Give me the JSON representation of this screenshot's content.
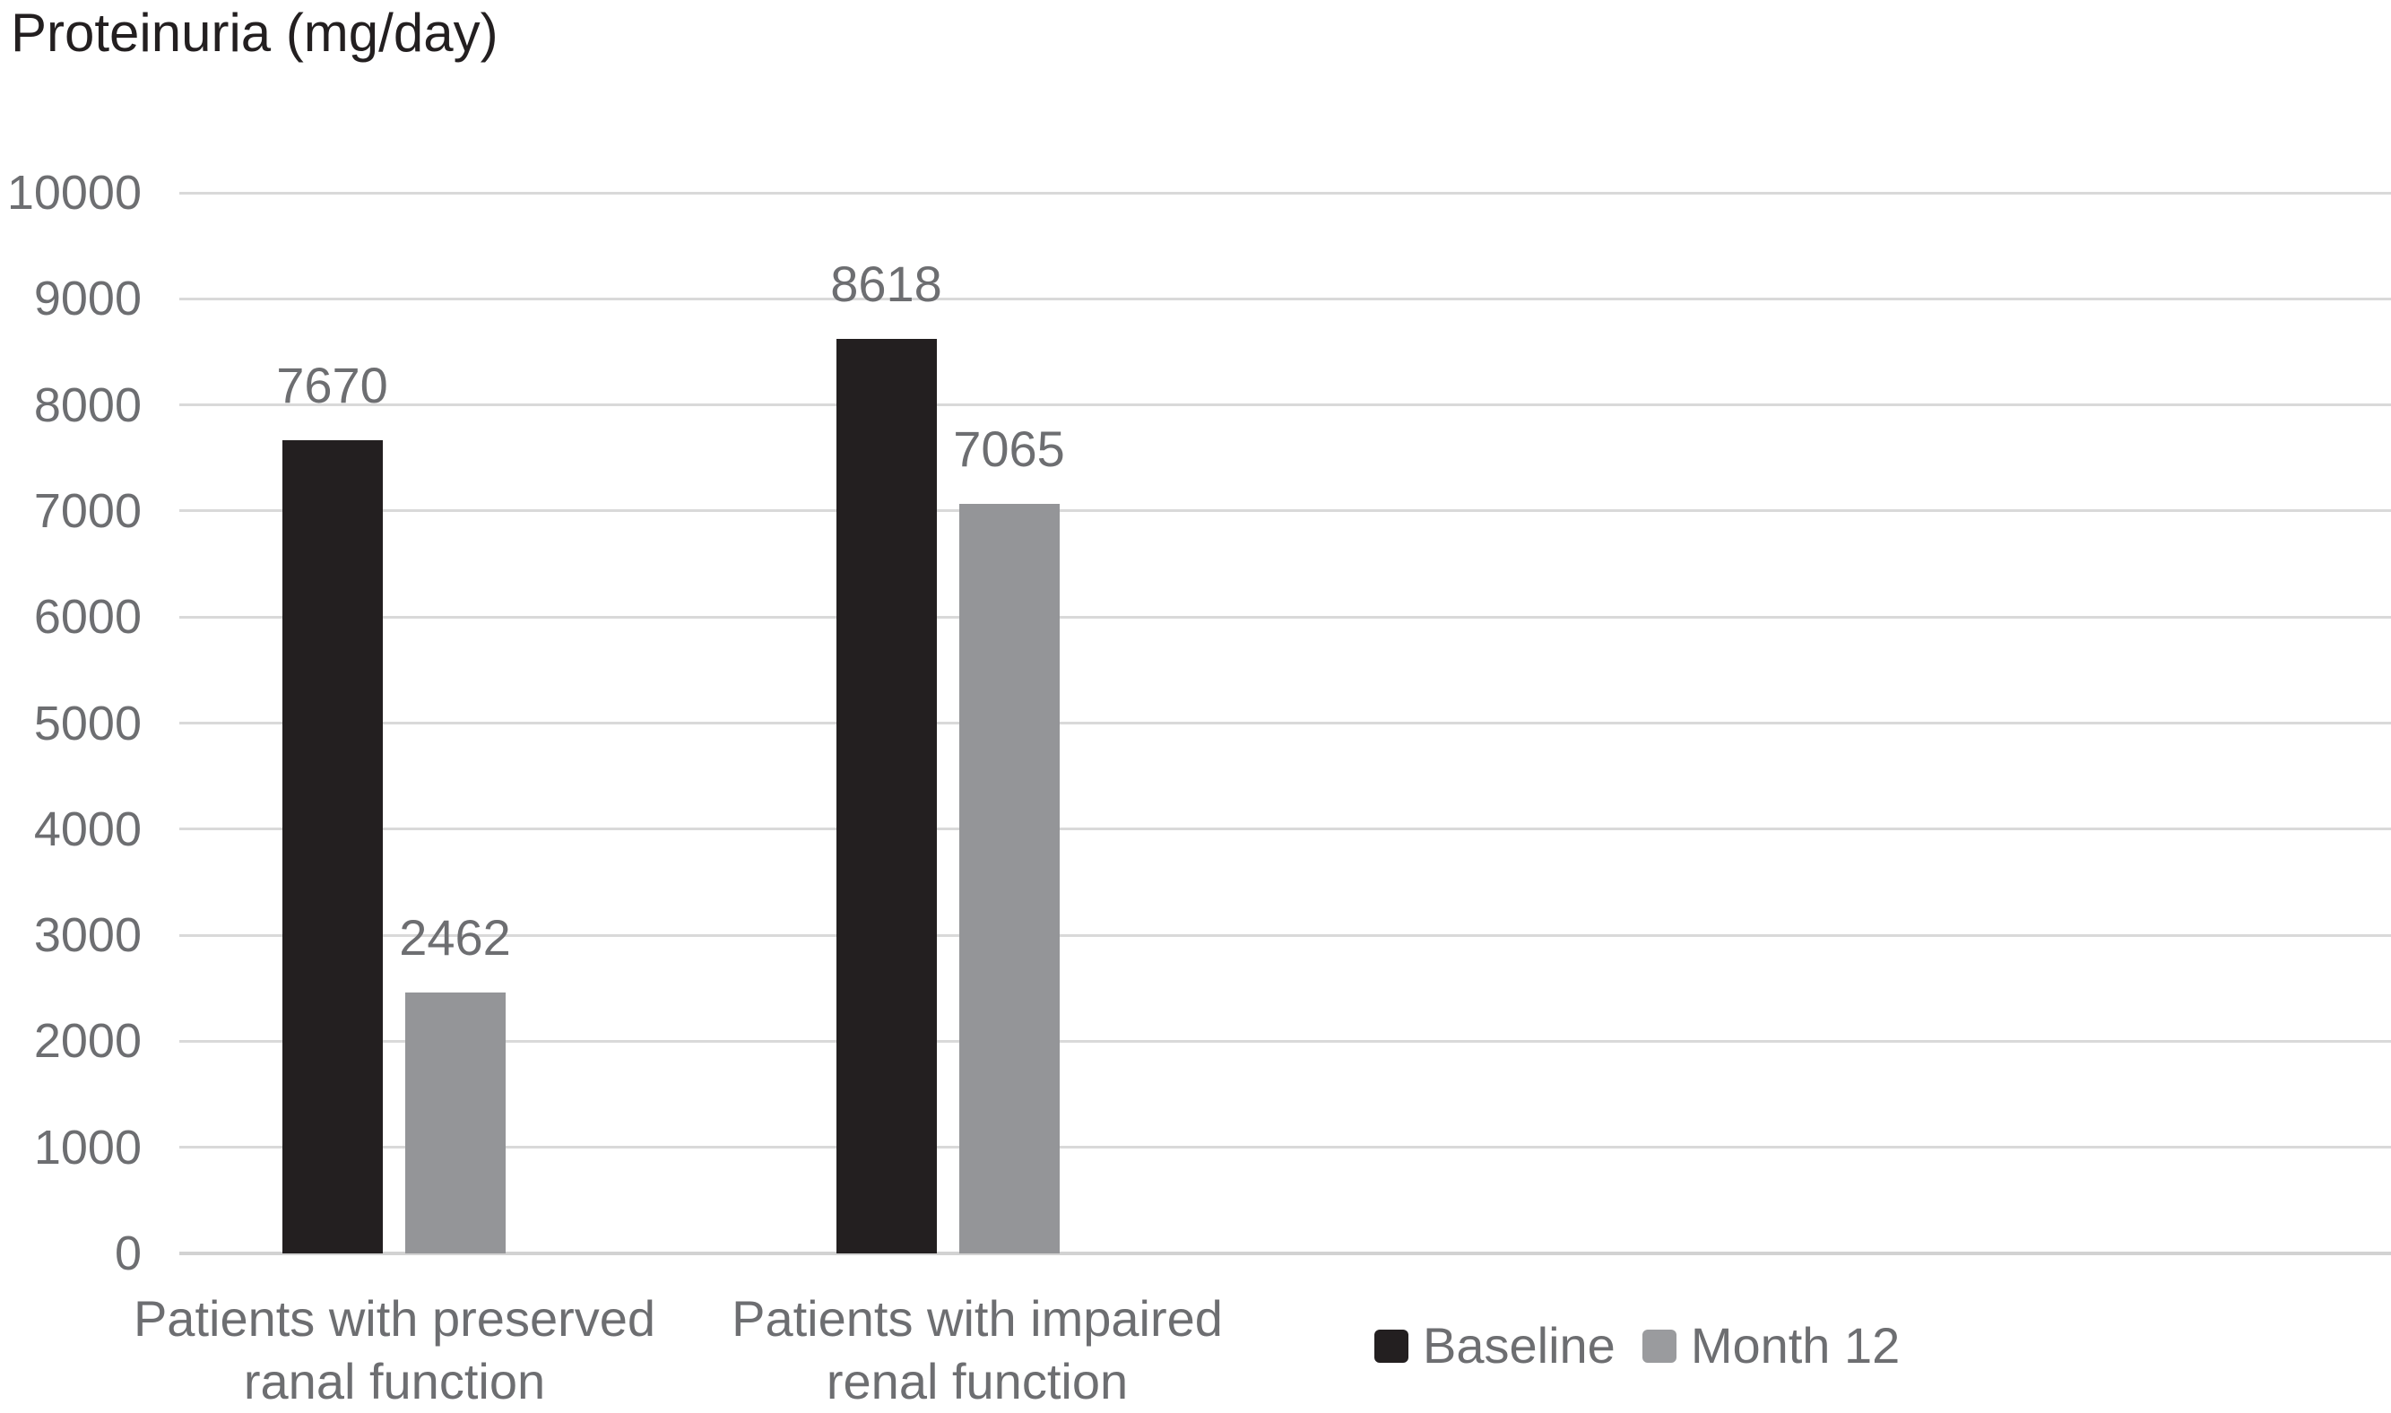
{
  "title": "Proteinuria (mg/day)",
  "chart_data": {
    "type": "bar",
    "title": "Proteinuria (mg/day)",
    "ylabel": "Proteinuria (mg/day)",
    "xlabel": "",
    "categories": [
      [
        "Patients with preserved",
        "ranal function"
      ],
      [
        "Patients with impaired",
        "renal function"
      ]
    ],
    "series": [
      {
        "name": "Baseline",
        "color": "#231f20",
        "values": [
          7670,
          8618
        ]
      },
      {
        "name": "Month 12",
        "color": "#949598",
        "values": [
          2462,
          7065
        ]
      }
    ],
    "data_labels": [
      [
        "7670",
        "8618"
      ],
      [
        "2462",
        "7065"
      ]
    ],
    "ylim": [
      0,
      10000
    ],
    "ytick_step": 1000,
    "yticks": [
      "0",
      "1000",
      "2000",
      "3000",
      "4000",
      "5000",
      "6000",
      "7000",
      "8000",
      "9000",
      "10000"
    ],
    "grid": true,
    "show_data_labels": true,
    "legend": {
      "position": "bottom-right",
      "items": [
        {
          "label": "Baseline",
          "color": "#231f20"
        },
        {
          "label": "Month 12",
          "color": "#9a9b9e"
        }
      ]
    }
  },
  "colors": {
    "background": "#ffffff",
    "gridline": "#d9d9d9",
    "axis_line": "#d2d2d2",
    "axis_text": "#6d6e71",
    "title_text": "#231f20",
    "baseline_bar": "#231f20",
    "month12_bar": "#949598"
  }
}
